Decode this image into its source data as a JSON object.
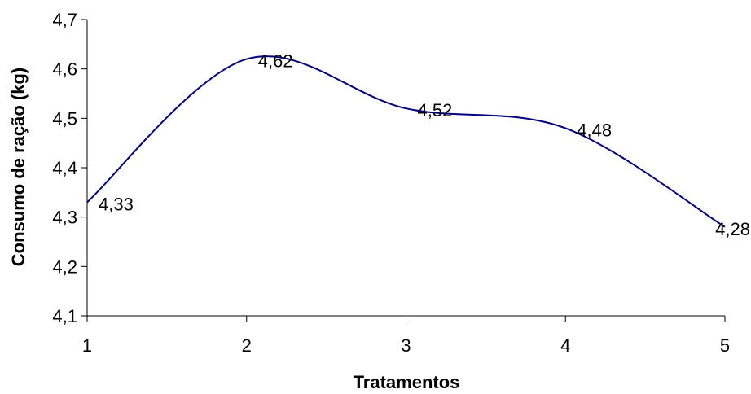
{
  "chart_data": {
    "type": "line",
    "title": "",
    "xlabel": "Tratamentos",
    "ylabel": "Consumo de ração (kg)",
    "x": [
      1,
      2,
      3,
      4,
      5
    ],
    "x_tick_labels": [
      "1",
      "2",
      "3",
      "4",
      "5"
    ],
    "y_tick_labels": [
      "4,1",
      "4,2",
      "4,3",
      "4,4",
      "4,5",
      "4,6",
      "4,7"
    ],
    "ylim": [
      4.1,
      4.7
    ],
    "grid": false,
    "smooth": true,
    "series": [
      {
        "values": [
          4.33,
          4.62,
          4.52,
          4.48,
          4.28
        ],
        "data_labels": [
          "4,33",
          "4,62",
          "4,52",
          "4,48",
          "4,28"
        ],
        "color": "#000080"
      }
    ]
  }
}
